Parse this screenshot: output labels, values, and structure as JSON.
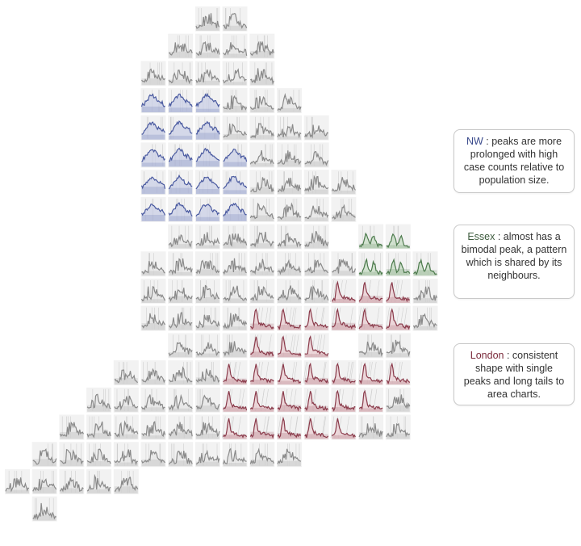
{
  "colors": {
    "nw": "#4a5aa0",
    "nw_fill": "#c9cfe6",
    "essex": "#4c7a4c",
    "essex_fill": "#c7dcc4",
    "london": "#8a3a4a",
    "london_fill": "#e9cdd2",
    "other": "#8a8a8a",
    "other_fill": "#e6e6e6",
    "cell_bg": "#f2f2f2",
    "vline": "#cfcfcf"
  },
  "annotations": [
    {
      "lead": "NW",
      "text": " : peaks are more prolonged with high case counts relative to population size."
    },
    {
      "lead": "Essex",
      "text": " : almost has a bimodal peak, a pattern which is shared by its neighbours."
    },
    {
      "lead": "London",
      "text": " : consistent shape with single peaks and long tails to area charts."
    }
  ],
  "chart_data": {
    "type": "area",
    "title": "",
    "layout": "grid map of small multiples",
    "columns": 16,
    "rows": 20,
    "row_spans": [
      {
        "row": 0,
        "from": 7,
        "to": 8
      },
      {
        "row": 1,
        "from": 6,
        "to": 9
      },
      {
        "row": 2,
        "from": 5,
        "to": 9
      },
      {
        "row": 3,
        "from": 5,
        "to": 10
      },
      {
        "row": 4,
        "from": 5,
        "to": 11
      },
      {
        "row": 5,
        "from": 5,
        "to": 11
      },
      {
        "row": 6,
        "from": 5,
        "to": 12
      },
      {
        "row": 7,
        "from": 5,
        "to": 12
      },
      {
        "row": 8,
        "from": 6,
        "to": 14
      },
      {
        "row": 9,
        "from": 5,
        "to": 15
      },
      {
        "row": 10,
        "from": 5,
        "to": 15
      },
      {
        "row": 11,
        "from": 5,
        "to": 15
      },
      {
        "row": 12,
        "from": 6,
        "to": 14
      },
      {
        "row": 13,
        "from": 4,
        "to": 14
      },
      {
        "row": 14,
        "from": 3,
        "to": 14
      },
      {
        "row": 15,
        "from": 2,
        "to": 14
      },
      {
        "row": 16,
        "from": 1,
        "to": 10
      },
      {
        "row": 17,
        "from": 0,
        "to": 4
      },
      {
        "row": 18,
        "from": 1,
        "to": 1
      }
    ],
    "empty_cells": [
      [
        8,
        12
      ],
      [
        12,
        12
      ]
    ],
    "regions": [
      {
        "name": "NW",
        "cells": [
          [
            3,
            5
          ],
          [
            3,
            6
          ],
          [
            3,
            7
          ],
          [
            4,
            5
          ],
          [
            4,
            6
          ],
          [
            4,
            7
          ],
          [
            5,
            5
          ],
          [
            5,
            6
          ],
          [
            5,
            7
          ],
          [
            5,
            8
          ],
          [
            6,
            5
          ],
          [
            6,
            6
          ],
          [
            6,
            7
          ],
          [
            6,
            8
          ],
          [
            7,
            5
          ],
          [
            7,
            6
          ],
          [
            7,
            7
          ],
          [
            7,
            8
          ]
        ]
      },
      {
        "name": "Essex",
        "cells": [
          [
            8,
            13
          ],
          [
            8,
            14
          ],
          [
            9,
            13
          ],
          [
            9,
            14
          ],
          [
            9,
            15
          ]
        ]
      },
      {
        "name": "London",
        "cells": [
          [
            10,
            12
          ],
          [
            10,
            13
          ],
          [
            10,
            14
          ],
          [
            11,
            9
          ],
          [
            11,
            10
          ],
          [
            11,
            11
          ],
          [
            11,
            12
          ],
          [
            11,
            13
          ],
          [
            11,
            14
          ],
          [
            12,
            9
          ],
          [
            12,
            10
          ],
          [
            12,
            11
          ],
          [
            13,
            8
          ],
          [
            13,
            9
          ],
          [
            13,
            10
          ],
          [
            13,
            11
          ],
          [
            13,
            12
          ],
          [
            13,
            13
          ],
          [
            13,
            14
          ],
          [
            14,
            8
          ],
          [
            14,
            9
          ],
          [
            14,
            10
          ],
          [
            14,
            11
          ],
          [
            14,
            12
          ],
          [
            14,
            13
          ],
          [
            15,
            8
          ],
          [
            15,
            9
          ],
          [
            15,
            10
          ],
          [
            15,
            11
          ],
          [
            15,
            12
          ]
        ]
      }
    ]
  }
}
